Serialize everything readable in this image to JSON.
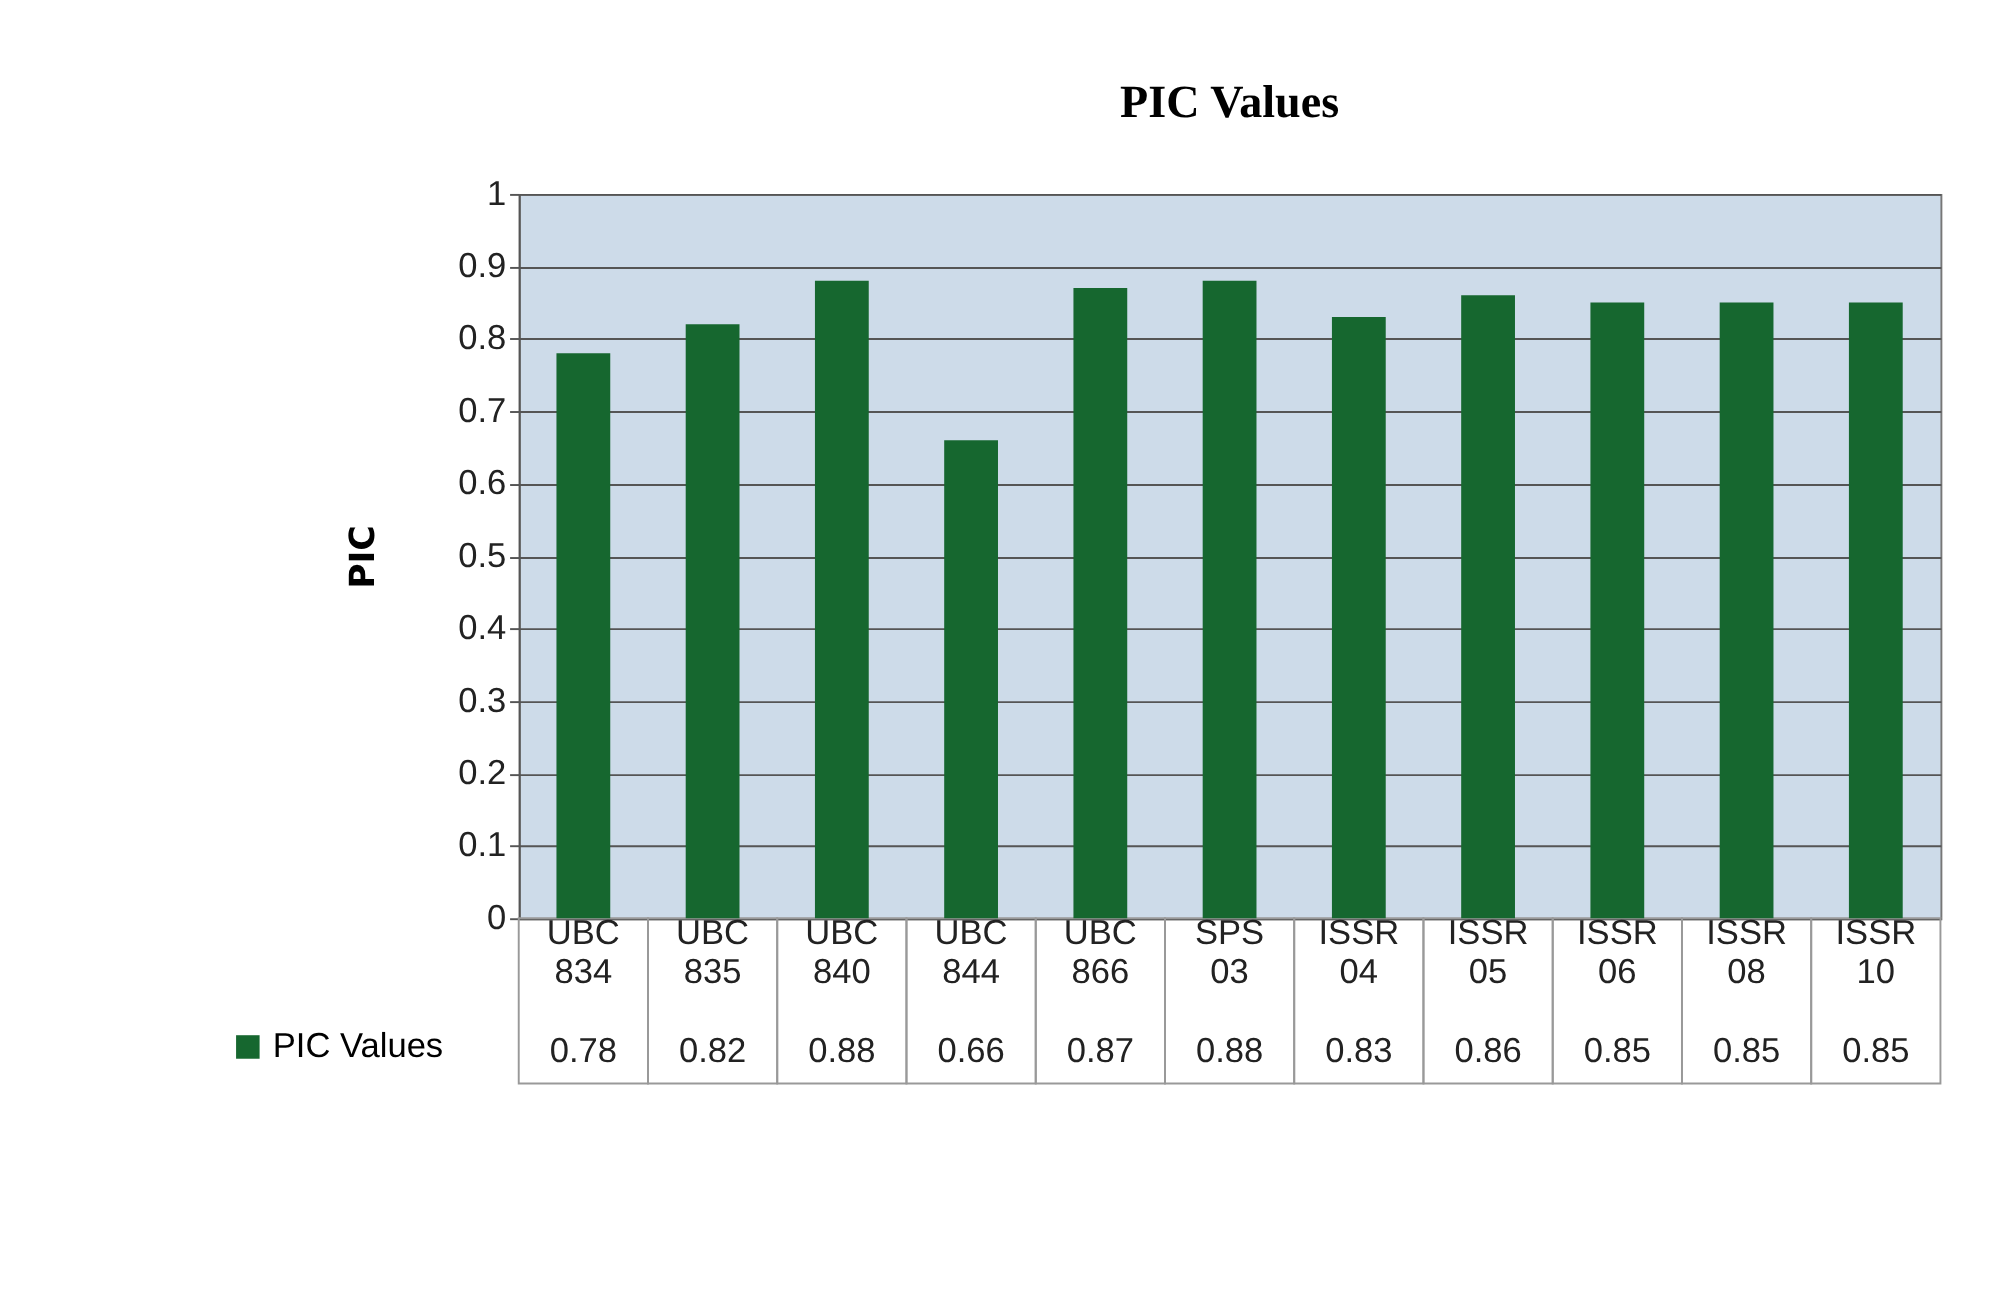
{
  "chart_data": {
    "type": "bar",
    "title": "PIC Values",
    "ylabel": "PIC",
    "categories": [
      "UBC 834",
      "UBC 835",
      "UBC 840",
      "UBC 844",
      "UBC 866",
      "SPS 03",
      "ISSR 04",
      "ISSR 05",
      "ISSR 06",
      "ISSR 08",
      "ISSR 10"
    ],
    "series": [
      {
        "name": "PIC Values",
        "color": "#16672f",
        "values": [
          0.78,
          0.82,
          0.88,
          0.66,
          0.87,
          0.88,
          0.83,
          0.86,
          0.85,
          0.85,
          0.85
        ]
      }
    ],
    "ylim": [
      0,
      1
    ],
    "yticks": [
      0,
      0.1,
      0.2,
      0.3,
      0.4,
      0.5,
      0.6,
      0.7,
      0.8,
      0.9,
      1
    ],
    "grid": "y",
    "legend": "bottom left",
    "data_labels": true
  }
}
